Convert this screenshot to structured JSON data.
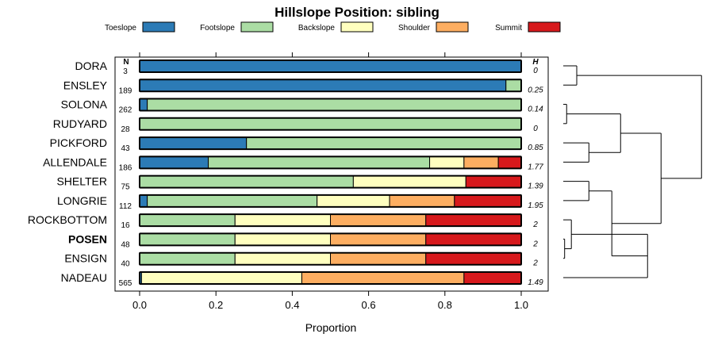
{
  "chart_data": {
    "type": "bar",
    "stacked": true,
    "orientation": "horizontal",
    "title": "Hillslope Position: sibling",
    "xlabel": "Proportion",
    "xlim": [
      0,
      1
    ],
    "x_ticks": [
      "0.0",
      "0.2",
      "0.4",
      "0.6",
      "0.8",
      "1.0"
    ],
    "n_header": "N",
    "h_header": "H",
    "highlight": "POSEN",
    "categories": [
      "DORA",
      "ENSLEY",
      "SOLONA",
      "RUDYARD",
      "PICKFORD",
      "ALLENDALE",
      "SHELTER",
      "LONGRIE",
      "ROCKBOTTOM",
      "POSEN",
      "ENSIGN",
      "NADEAU"
    ],
    "n": [
      "3",
      "189",
      "262",
      "28",
      "43",
      "186",
      "75",
      "112",
      "16",
      "48",
      "40",
      "565"
    ],
    "h": [
      "0",
      "0.25",
      "0.14",
      "0",
      "0.85",
      "1.77",
      "1.39",
      "1.95",
      "2",
      "2",
      "2",
      "1.49"
    ],
    "series": [
      {
        "name": "Toeslope",
        "color": "#2C7BB6",
        "values": [
          1.0,
          0.96,
          0.02,
          0.0,
          0.28,
          0.18,
          0.0,
          0.02,
          0.0,
          0.0,
          0.0,
          0.005
        ]
      },
      {
        "name": "Footslope",
        "color": "#ABDDA4",
        "values": [
          0.0,
          0.04,
          0.98,
          1.0,
          0.72,
          0.58,
          0.56,
          0.445,
          0.25,
          0.25,
          0.25,
          0.0
        ]
      },
      {
        "name": "Backslope",
        "color": "#FFFFBF",
        "values": [
          0.0,
          0.0,
          0.0,
          0.0,
          0.0,
          0.09,
          0.295,
          0.19,
          0.25,
          0.25,
          0.25,
          0.42
        ]
      },
      {
        "name": "Shoulder",
        "color": "#FDAE61",
        "values": [
          0.0,
          0.0,
          0.0,
          0.0,
          0.0,
          0.09,
          0.0,
          0.17,
          0.25,
          0.25,
          0.25,
          0.425
        ]
      },
      {
        "name": "Summit",
        "color": "#D7191C",
        "values": [
          0.0,
          0.0,
          0.0,
          0.0,
          0.0,
          0.06,
          0.145,
          0.175,
          0.25,
          0.25,
          0.25,
          0.15
        ]
      }
    ],
    "dendrogram": {
      "type": "hierarchical-clustering",
      "merges": [
        {
          "members": [
            "DORA",
            "ENSLEY"
          ],
          "height": 0.2
        },
        {
          "members": [
            "SOLONA",
            "RUDYARD"
          ],
          "height": 0.05
        },
        {
          "members": [
            "PICKFORD",
            "ALLENDALE"
          ],
          "height": 0.38
        },
        {
          "members": [
            "POSEN",
            "ENSIGN"
          ],
          "height": 0.02
        },
        {
          "members": [
            "ROCKBOTTOM",
            "POSEN",
            "ENSIGN"
          ],
          "height": 0.12
        },
        {
          "members": [
            "SHELTER",
            "LONGRIE"
          ],
          "height": 0.38
        },
        {
          "members": [
            "SOLONA",
            "RUDYARD",
            "PICKFORD",
            "ALLENDALE"
          ],
          "height": 0.85
        },
        {
          "members": [
            "ROCKBOTTOM",
            "POSEN",
            "ENSIGN",
            "NADEAU"
          ],
          "height": 1.25
        },
        {
          "members": [
            "SHELTER",
            "LONGRIE",
            "ROCKBOTTOM",
            "POSEN",
            "ENSIGN",
            "NADEAU"
          ],
          "height": 0.72
        },
        {
          "members": [
            "SOLONA",
            "RUDYARD",
            "PICKFORD",
            "ALLENDALE",
            "SHELTER",
            "LONGRIE",
            "ROCKBOTTOM",
            "POSEN",
            "ENSIGN",
            "NADEAU"
          ],
          "height": 1.45
        },
        {
          "members": [
            "DORA",
            "ENSLEY",
            "SOLONA",
            "RUDYARD",
            "PICKFORD",
            "ALLENDALE",
            "SHELTER",
            "LONGRIE",
            "ROCKBOTTOM",
            "POSEN",
            "ENSIGN",
            "NADEAU"
          ],
          "height": 2.05
        }
      ]
    }
  }
}
